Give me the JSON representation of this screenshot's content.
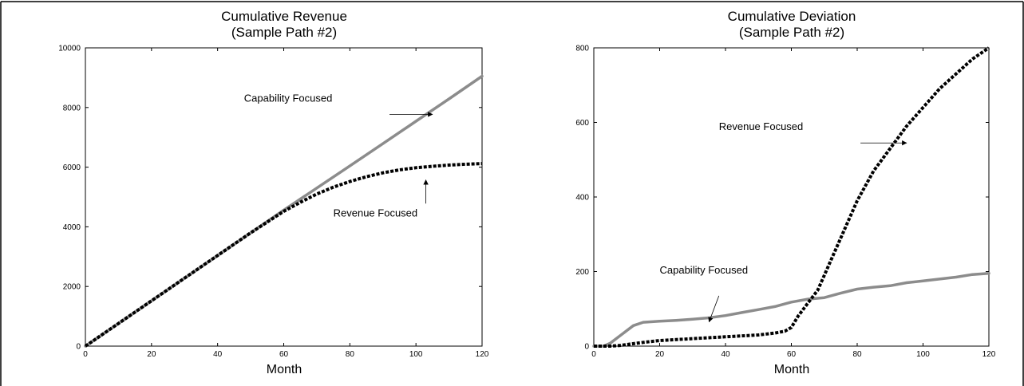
{
  "chart_data": [
    {
      "type": "line",
      "title": "Cumulative Revenue",
      "subtitle": "(Sample Path #2)",
      "xlabel": "Month",
      "ylabel": "",
      "xlim": [
        0,
        120
      ],
      "ylim": [
        0,
        10000
      ],
      "xticks": [
        0,
        20,
        40,
        60,
        80,
        100,
        120
      ],
      "yticks": [
        0,
        2000,
        4000,
        6000,
        8000,
        10000
      ],
      "grid": false,
      "series": [
        {
          "name": "Capability Focused",
          "style": "solid",
          "color": "#8c8c8c",
          "x": [
            0,
            10,
            20,
            30,
            40,
            50,
            60,
            70,
            80,
            90,
            100,
            110,
            120
          ],
          "y": [
            0,
            760,
            1520,
            2280,
            3040,
            3800,
            4560,
            5300,
            6040,
            6790,
            7540,
            8290,
            9050
          ]
        },
        {
          "name": "Revenue Focused",
          "style": "dotted",
          "color": "#000000",
          "x": [
            0,
            10,
            20,
            30,
            40,
            50,
            60,
            65,
            70,
            75,
            80,
            85,
            90,
            95,
            100,
            105,
            110,
            115,
            120
          ],
          "y": [
            0,
            760,
            1520,
            2280,
            3040,
            3800,
            4520,
            4820,
            5100,
            5330,
            5520,
            5680,
            5810,
            5910,
            5980,
            6030,
            6070,
            6100,
            6120
          ]
        }
      ],
      "annotations": [
        {
          "text": "Capability Focused",
          "x": 48,
          "y": 8200,
          "arrow_from": [
            92,
            7770
          ],
          "arrow_to": [
            105,
            7770
          ]
        },
        {
          "text": "Revenue Focused",
          "x": 75,
          "y": 4350,
          "arrow_from": [
            103,
            4780
          ],
          "arrow_to": [
            103,
            5570
          ]
        }
      ]
    },
    {
      "type": "line",
      "title": "Cumulative Deviation",
      "subtitle": "(Sample Path #2)",
      "xlabel": "Month",
      "ylabel": "",
      "xlim": [
        0,
        120
      ],
      "ylim": [
        0,
        800
      ],
      "xticks": [
        0,
        20,
        40,
        60,
        80,
        100,
        120
      ],
      "yticks": [
        0,
        200,
        400,
        600,
        800
      ],
      "grid": false,
      "series": [
        {
          "name": "Capability Focused",
          "style": "solid",
          "color": "#8c8c8c",
          "x": [
            0,
            3,
            5,
            8,
            12,
            15,
            20,
            25,
            30,
            35,
            40,
            45,
            50,
            55,
            60,
            65,
            70,
            75,
            80,
            85,
            90,
            95,
            100,
            105,
            110,
            115,
            120
          ],
          "y": [
            0,
            0,
            8,
            28,
            55,
            64,
            67,
            69,
            72,
            76,
            82,
            90,
            98,
            106,
            118,
            126,
            130,
            142,
            153,
            158,
            162,
            170,
            175,
            180,
            185,
            192,
            195
          ]
        },
        {
          "name": "Revenue Focused",
          "style": "dotted",
          "color": "#000000",
          "x": [
            0,
            5,
            8,
            15,
            20,
            30,
            40,
            50,
            55,
            58,
            60,
            62,
            65,
            68,
            70,
            75,
            80,
            85,
            90,
            95,
            100,
            105,
            110,
            115,
            120
          ],
          "y": [
            0,
            0,
            2,
            10,
            15,
            20,
            25,
            30,
            35,
            40,
            50,
            80,
            115,
            150,
            190,
            290,
            390,
            470,
            530,
            590,
            640,
            690,
            730,
            770,
            800
          ]
        }
      ],
      "annotations": [
        {
          "text": "Revenue Focused",
          "x": 38,
          "y": 580,
          "arrow_from": [
            81,
            545
          ],
          "arrow_to": [
            95,
            545
          ]
        },
        {
          "text": "Capability Focused",
          "x": 20,
          "y": 195,
          "arrow_from": [
            38,
            135
          ],
          "arrow_to": [
            35,
            65
          ]
        }
      ]
    }
  ]
}
